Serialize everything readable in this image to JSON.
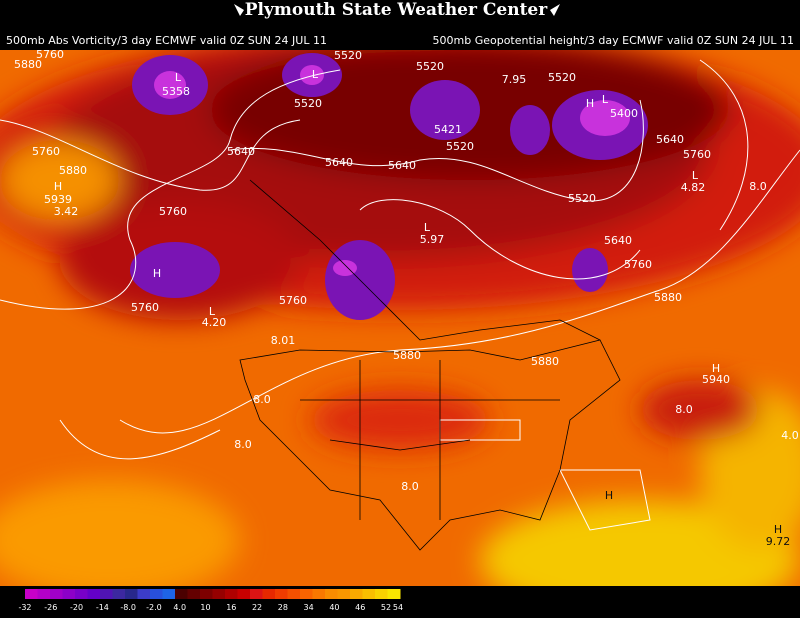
{
  "header": {
    "title": "Plymouth State Weather Center",
    "left_caption": "500mb Abs Vorticity/3 day ECMWF valid 0Z SUN 24 JUL 11",
    "right_caption": "500mb Geopotential height/3 day ECMWF valid 0Z SUN 24 JUL 11"
  },
  "map_labels": [
    "L",
    "5358",
    "L",
    "5520",
    "5520",
    "5520",
    "5520",
    "5421",
    "5520",
    "L",
    "5400",
    "H",
    "7.95",
    "5640",
    "5760",
    "5760",
    "5880",
    "H",
    "5939",
    "3.42",
    "5640",
    "5640",
    "5640",
    "5760",
    "5520",
    "L",
    "4.82",
    "8.0",
    "L",
    "5.97",
    "5640",
    "H",
    "5760",
    "5880",
    "5760",
    "L",
    "4.20",
    "5760",
    "8.01",
    "5880",
    "5880",
    "H",
    "5940",
    "8.0",
    "8.0",
    "8.0",
    "4.0",
    "8.0",
    "H",
    "H",
    "9.72",
    "5880",
    "5760"
  ],
  "colorbar": {
    "labels": [
      "-32",
      "-26",
      "-20",
      "-14",
      "-8.0",
      "-2.0",
      "4.0",
      "10",
      "16",
      "22",
      "28",
      "34",
      "40",
      "46",
      "52",
      "54"
    ],
    "colors": [
      "#c800c8",
      "#b400c8",
      "#a000c8",
      "#8c00c8",
      "#7800c8",
      "#6400c8",
      "#5014b4",
      "#3c28a0",
      "#28288c",
      "#3c3cc8",
      "#2850dc",
      "#1e64e6",
      "#4b0000",
      "#640000",
      "#7d0000",
      "#960000",
      "#af0000",
      "#c80000",
      "#dc1414",
      "#e62800",
      "#f03c00",
      "#f55000",
      "#fa6400",
      "#fa7800",
      "#fa8c00",
      "#fa9600",
      "#faaa00",
      "#fabe00",
      "#fad200",
      "#fae600"
    ]
  }
}
